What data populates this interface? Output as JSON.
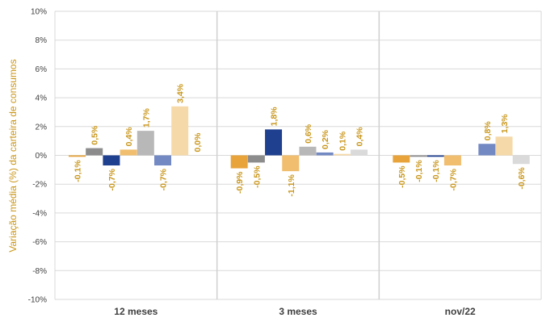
{
  "chart_data": {
    "type": "bar",
    "ylabel": "Variação média (%) da carteira de consumos",
    "ylim": [
      -10,
      10
    ],
    "y_ticks": [
      "-10%",
      "-8%",
      "-6%",
      "-4%",
      "-2%",
      "0%",
      "2%",
      "4%",
      "6%",
      "8%",
      "10%"
    ],
    "categories": [
      "12 meses",
      "3 meses",
      "nov/22"
    ],
    "grid": {
      "horizontal": true,
      "vertical_separators": true
    },
    "series": [
      {
        "color": "#E8A33A",
        "values": [
          -0.1,
          -0.9,
          -0.5
        ],
        "labels": [
          "-0,1%",
          "-0,9%",
          "-0,5%"
        ]
      },
      {
        "color": "#8C8C8C",
        "values": [
          0.5,
          -0.5,
          -0.1
        ],
        "labels": [
          "0,5%",
          "-0,5%",
          "-0,1%"
        ]
      },
      {
        "color": "#1F3F8F",
        "values": [
          -0.7,
          1.8,
          -0.1
        ],
        "labels": [
          "-0,7%",
          "1,8%",
          "-0,1%"
        ]
      },
      {
        "color": "#F0BE6E",
        "values": [
          0.4,
          -1.1,
          -0.7
        ],
        "labels": [
          "0,4%",
          "-1,1%",
          "-0,7%"
        ]
      },
      {
        "color": "#B8B8B8",
        "values": [
          1.7,
          0.6,
          0.0
        ],
        "labels": [
          "1,7%",
          "0,6%",
          ""
        ]
      },
      {
        "color": "#7389C4",
        "values": [
          -0.7,
          0.2,
          0.8
        ],
        "labels": [
          "-0,7%",
          "0,2%",
          "0,8%"
        ]
      },
      {
        "color": "#F6D9A8",
        "values": [
          3.4,
          0.1,
          1.3
        ],
        "labels": [
          "3,4%",
          "0,1%",
          "1,3%"
        ]
      },
      {
        "color": "#DADADA",
        "values": [
          0.0,
          0.4,
          -0.6
        ],
        "labels": [
          "0,0%",
          "0,4%",
          "-0,6%"
        ]
      }
    ]
  }
}
